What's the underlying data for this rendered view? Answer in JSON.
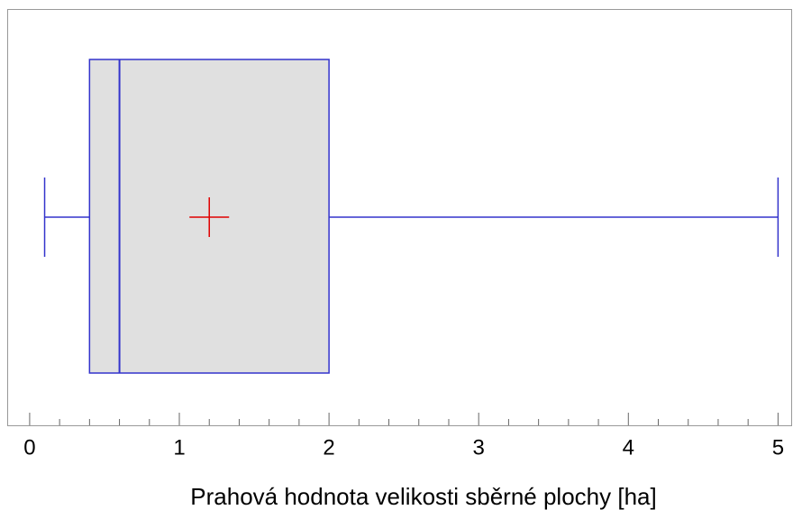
{
  "chart_data": {
    "type": "box",
    "orientation": "horizontal",
    "xlabel": "Prahová hodnota velikosti sběrné plochy [ha]",
    "min": 0.1,
    "q1": 0.4,
    "median": 0.6,
    "q3": 2.0,
    "max": 5.0,
    "mean": 1.2,
    "color": "#3333cc",
    "box_fill": "#e0e0e0",
    "mean_color": "#e00000",
    "xlim": [
      -0.15,
      5.1
    ],
    "xticks": [
      0,
      1,
      2,
      3,
      4,
      5
    ],
    "xminorticks": [
      0.2,
      0.4,
      0.6,
      0.8,
      1.2,
      1.4,
      1.6,
      1.8,
      2.2,
      2.4,
      2.6,
      2.8,
      3.2,
      3.4,
      3.6,
      3.8,
      4.2,
      4.4,
      4.6,
      4.8
    ]
  }
}
